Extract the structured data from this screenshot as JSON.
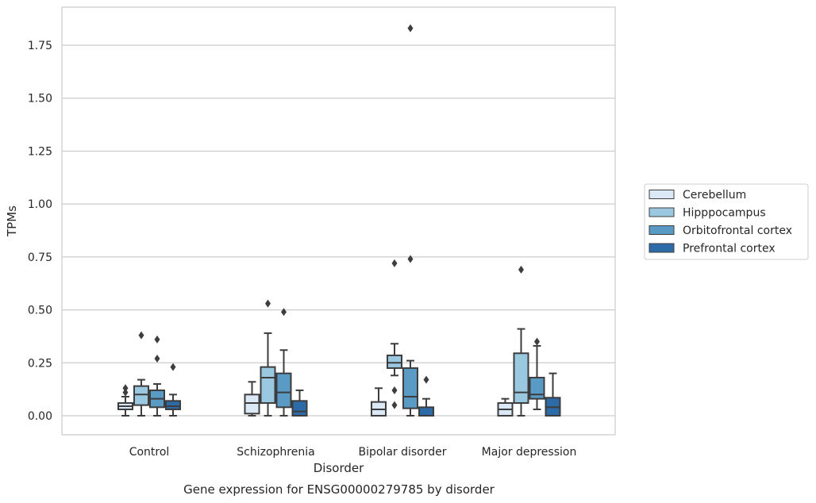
{
  "chart_data": {
    "type": "box",
    "title": "",
    "caption": "Gene expression for ENSG00000279785 by disorder",
    "xlabel": "Disorder",
    "ylabel": "TPMs",
    "ylim": [
      -0.09,
      1.93
    ],
    "yticks": [
      0.0,
      0.25,
      0.5,
      0.75,
      1.0,
      1.25,
      1.5,
      1.75
    ],
    "ytick_labels": [
      "0.00",
      "0.25",
      "0.50",
      "0.75",
      "1.00",
      "1.25",
      "1.50",
      "1.75"
    ],
    "grid": "horizontal",
    "legend_placement": "right",
    "categories": [
      "Control",
      "Schizophrenia",
      "Bipolar disorder",
      "Major depression"
    ],
    "series": [
      {
        "name": "Cerebellum",
        "color": "#dbe9f6",
        "boxes": [
          {
            "whislo": 0.0,
            "q1": 0.03,
            "med": 0.045,
            "q3": 0.06,
            "whishi": 0.09,
            "fliers": [
              0.11,
              0.13
            ]
          },
          {
            "whislo": 0.0,
            "q1": 0.01,
            "med": 0.06,
            "q3": 0.1,
            "whishi": 0.16,
            "fliers": []
          },
          {
            "whislo": 0.0,
            "q1": 0.0,
            "med": 0.03,
            "q3": 0.065,
            "whishi": 0.13,
            "fliers": []
          },
          {
            "whislo": 0.0,
            "q1": 0.0,
            "med": 0.03,
            "q3": 0.06,
            "whishi": 0.08,
            "fliers": []
          }
        ]
      },
      {
        "name": "Hipppocampus",
        "color": "#9ac8e0",
        "boxes": [
          {
            "whislo": 0.0,
            "q1": 0.05,
            "med": 0.1,
            "q3": 0.14,
            "whishi": 0.17,
            "fliers": [
              0.38
            ]
          },
          {
            "whislo": 0.0,
            "q1": 0.06,
            "med": 0.18,
            "q3": 0.23,
            "whishi": 0.39,
            "fliers": [
              0.53
            ]
          },
          {
            "whislo": 0.19,
            "q1": 0.225,
            "med": 0.25,
            "q3": 0.285,
            "whishi": 0.34,
            "fliers": [
              0.72,
              0.05,
              0.12
            ]
          },
          {
            "whislo": 0.0,
            "q1": 0.06,
            "med": 0.11,
            "q3": 0.295,
            "whishi": 0.41,
            "fliers": [
              0.69
            ]
          }
        ]
      },
      {
        "name": "Orbitofrontal cortex",
        "color": "#5a9bc6",
        "boxes": [
          {
            "whislo": 0.0,
            "q1": 0.04,
            "med": 0.08,
            "q3": 0.12,
            "whishi": 0.15,
            "fliers": [
              0.36,
              0.27
            ]
          },
          {
            "whislo": 0.0,
            "q1": 0.04,
            "med": 0.11,
            "q3": 0.2,
            "whishi": 0.31,
            "fliers": [
              0.49
            ]
          },
          {
            "whislo": 0.0,
            "q1": 0.035,
            "med": 0.09,
            "q3": 0.225,
            "whishi": 0.26,
            "fliers": [
              1.83,
              0.74
            ]
          },
          {
            "whislo": 0.03,
            "q1": 0.08,
            "med": 0.1,
            "q3": 0.18,
            "whishi": 0.33,
            "fliers": [
              0.35
            ]
          }
        ]
      },
      {
        "name": "Prefrontal cortex",
        "color": "#2d6aa8",
        "boxes": [
          {
            "whislo": 0.0,
            "q1": 0.03,
            "med": 0.045,
            "q3": 0.07,
            "whishi": 0.1,
            "fliers": [
              0.23
            ]
          },
          {
            "whislo": 0.0,
            "q1": 0.0,
            "med": 0.02,
            "q3": 0.07,
            "whishi": 0.12,
            "fliers": []
          },
          {
            "whislo": 0.0,
            "q1": 0.0,
            "med": 0.0,
            "q3": 0.04,
            "whishi": 0.08,
            "fliers": [
              0.17
            ]
          },
          {
            "whislo": 0.0,
            "q1": 0.0,
            "med": 0.04,
            "q3": 0.085,
            "whishi": 0.2,
            "fliers": []
          }
        ]
      }
    ]
  }
}
